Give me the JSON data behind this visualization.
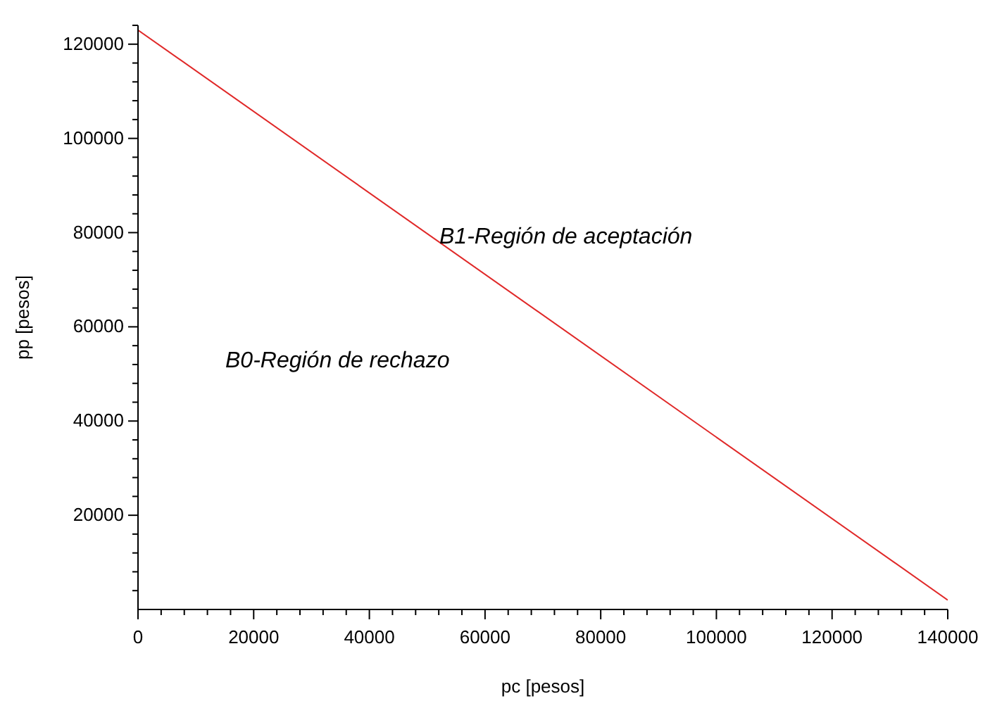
{
  "chart_data": {
    "type": "line",
    "xlabel": "pc [pesos]",
    "ylabel": "pp [pesos]",
    "x": [
      0,
      140000
    ],
    "series": [
      {
        "color": "#e02828",
        "values": [
          123000,
          2000
        ]
      }
    ],
    "xlim": [
      0,
      140000
    ],
    "ylim": [
      0,
      124000
    ],
    "xticks": [
      0,
      {
        "value": 4000,
        "label": null
      },
      {
        "value": 8000,
        "label": null
      },
      {
        "value": 12000,
        "label": null
      },
      {
        "value": 16000,
        "label": null
      },
      20000,
      {
        "value": 24000,
        "label": null
      },
      {
        "value": 28000,
        "label": null
      },
      {
        "value": 32000,
        "label": null
      },
      {
        "value": 36000,
        "label": null
      },
      40000,
      {
        "value": 44000,
        "label": null
      },
      {
        "value": 48000,
        "label": null
      },
      {
        "value": 52000,
        "label": null
      },
      {
        "value": 56000,
        "label": null
      },
      60000,
      {
        "value": 64000,
        "label": null
      },
      {
        "value": 68000,
        "label": null
      },
      {
        "value": 72000,
        "label": null
      },
      {
        "value": 76000,
        "label": null
      },
      80000,
      {
        "value": 84000,
        "label": null
      },
      {
        "value": 88000,
        "label": null
      },
      {
        "value": 92000,
        "label": null
      },
      {
        "value": 96000,
        "label": null
      },
      100000,
      {
        "value": 104000,
        "label": null
      },
      {
        "value": 108000,
        "label": null
      },
      {
        "value": 112000,
        "label": null
      },
      {
        "value": 116000,
        "label": null
      },
      120000,
      {
        "value": 124000,
        "label": null
      },
      {
        "value": 128000,
        "label": null
      },
      {
        "value": 132000,
        "label": null
      },
      {
        "value": 136000,
        "label": null
      },
      140000
    ],
    "yticks": [
      {
        "value": 4000,
        "label": null
      },
      {
        "value": 8000,
        "label": null
      },
      {
        "value": 12000,
        "label": null
      },
      {
        "value": 16000,
        "label": null
      },
      20000,
      {
        "value": 24000,
        "label": null
      },
      {
        "value": 28000,
        "label": null
      },
      {
        "value": 32000,
        "label": null
      },
      {
        "value": 36000,
        "label": null
      },
      40000,
      {
        "value": 44000,
        "label": null
      },
      {
        "value": 48000,
        "label": null
      },
      {
        "value": 52000,
        "label": null
      },
      {
        "value": 56000,
        "label": null
      },
      60000,
      {
        "value": 64000,
        "label": null
      },
      {
        "value": 68000,
        "label": null
      },
      {
        "value": 72000,
        "label": null
      },
      {
        "value": 76000,
        "label": null
      },
      80000,
      {
        "value": 84000,
        "label": null
      },
      {
        "value": 88000,
        "label": null
      },
      {
        "value": 92000,
        "label": null
      },
      {
        "value": 96000,
        "label": null
      },
      100000,
      {
        "value": 104000,
        "label": null
      },
      {
        "value": 108000,
        "label": null
      },
      {
        "value": 112000,
        "label": null
      },
      {
        "value": 116000,
        "label": null
      },
      120000,
      {
        "value": 124000,
        "label": null
      }
    ],
    "annotations": [
      "B1-Región de aceptación",
      "B0-Región de rechazo"
    ],
    "marker": "none",
    "line_style": "solid"
  }
}
